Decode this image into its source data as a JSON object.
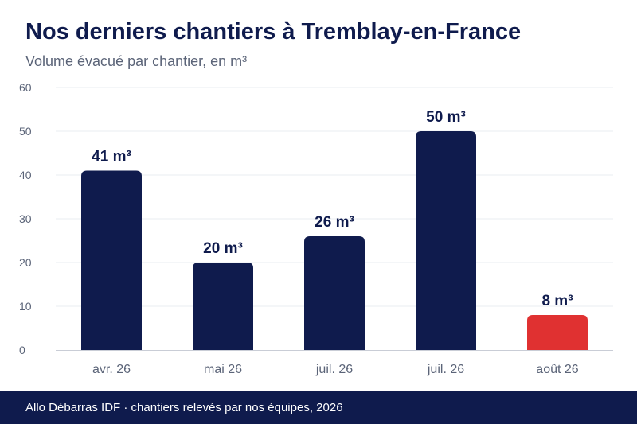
{
  "header": {
    "title": "Nos derniers chantiers à Tremblay-en-France",
    "subtitle": "Volume évacué par chantier, en m³"
  },
  "footer": {
    "text": "Allo Débarras IDF · chantiers relevés par nos équipes, 2026"
  },
  "colors": {
    "bar": "#0f1b4d",
    "highlight": "#e03131",
    "grid": "#e9ecf1",
    "axis_text": "#5b6478",
    "label_text": "#0f1b4d"
  },
  "chart_data": {
    "type": "bar",
    "categories": [
      "avr. 26",
      "mai 26",
      "juil. 26",
      "juil. 26",
      "août 26"
    ],
    "values": [
      41,
      20,
      26,
      50,
      8
    ],
    "value_labels": [
      "41 m³",
      "20 m³",
      "26 m³",
      "50 m³",
      "8 m³"
    ],
    "highlight_index": 4,
    "ylim": [
      0,
      60
    ],
    "yticks": [
      0,
      10,
      20,
      30,
      40,
      50,
      60
    ],
    "grid": true,
    "title": "Nos derniers chantiers à Tremblay-en-France",
    "subtitle": "Volume évacué par chantier, en m³",
    "xlabel": "",
    "ylabel": ""
  }
}
